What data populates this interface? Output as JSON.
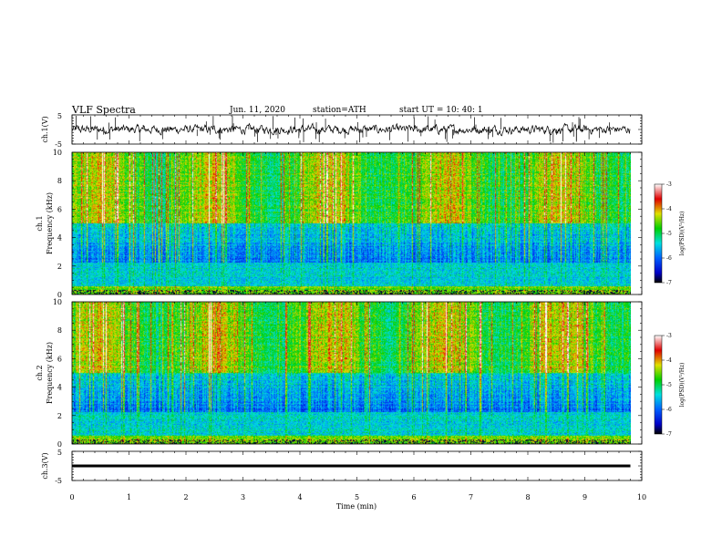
{
  "header": {
    "title": "VLF  Spectra",
    "date": "Jun. 11, 2020",
    "station": "station=ATH",
    "start": "start  UT  =    10: 40: 1"
  },
  "chart_data": [
    {
      "type": "line",
      "name": "ch1-waveform",
      "ylabel": "ch.1(V)",
      "ylim": [
        -5,
        5
      ],
      "yticks": [
        "5",
        "-5"
      ],
      "xlim": [
        0,
        10
      ]
    },
    {
      "type": "heatmap",
      "name": "ch1-spectrogram",
      "ylabel": [
        "ch.1",
        "Frequency  (kHz)"
      ],
      "ylim": [
        0,
        10
      ],
      "yticks": [
        "0",
        "2",
        "4",
        "6",
        "8",
        "10"
      ],
      "xlim": [
        0,
        10
      ],
      "data_end_min": 9.8,
      "colorbar": {
        "label": "log(PSD)(V²/Hz)",
        "range": [
          -7,
          -3
        ],
        "ticks": [
          "-3",
          "-4",
          "-5",
          "-6",
          "-7"
        ]
      }
    },
    {
      "type": "heatmap",
      "name": "ch2-spectrogram",
      "ylabel": [
        "ch.2",
        "Frequency  (kHz)"
      ],
      "ylim": [
        0,
        10
      ],
      "yticks": [
        "0",
        "2",
        "4",
        "6",
        "8",
        "10"
      ],
      "xlim": [
        0,
        10
      ],
      "data_end_min": 9.8,
      "colorbar": {
        "label": "log(PSD)(V²/Hz)",
        "range": [
          -7,
          -3
        ],
        "ticks": [
          "-3",
          "-4",
          "-5",
          "-6",
          "-7"
        ]
      }
    },
    {
      "type": "line",
      "name": "ch3-waveform",
      "ylabel": "ch.3(V)",
      "ylim": [
        -5,
        5
      ],
      "yticks": [
        "5",
        "-5"
      ],
      "xlim": [
        0,
        10
      ],
      "level_v": 0
    }
  ],
  "xaxis": {
    "label": "Time  (min)",
    "ticks": [
      "0",
      "1",
      "2",
      "3",
      "4",
      "5",
      "6",
      "7",
      "8",
      "9",
      "10"
    ],
    "range": [
      0,
      10
    ]
  }
}
